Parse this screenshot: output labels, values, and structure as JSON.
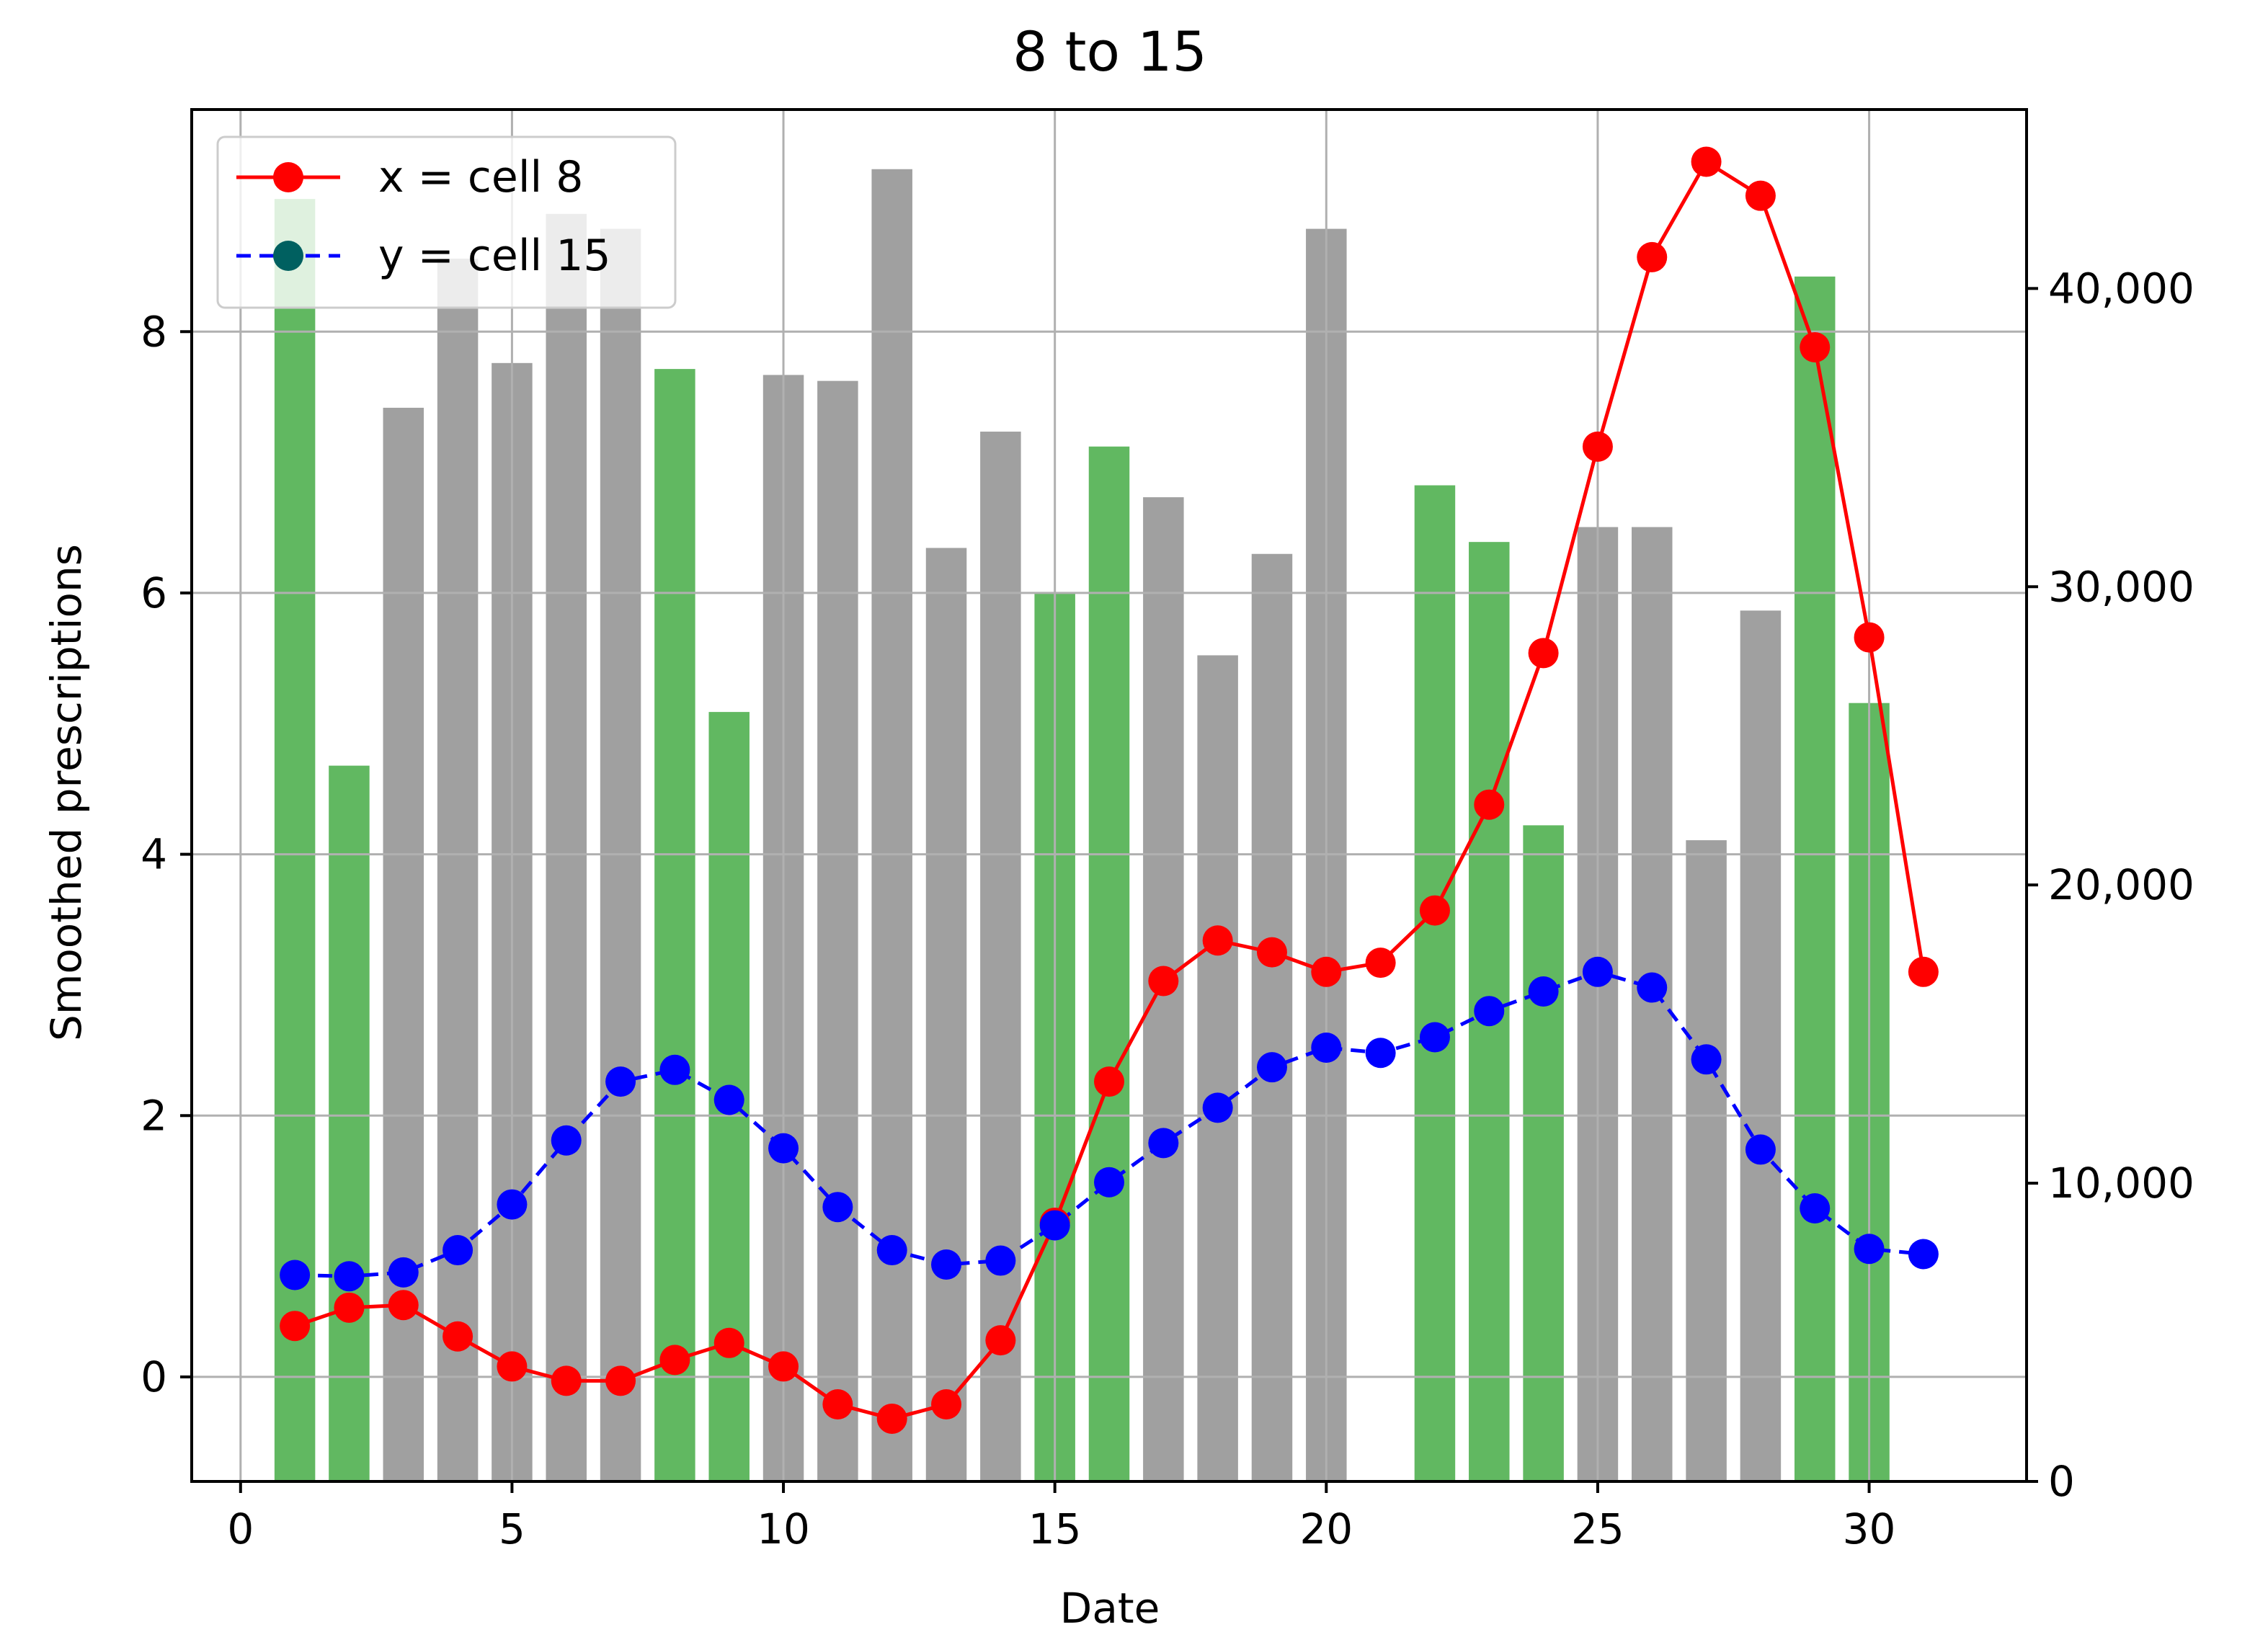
{
  "chart_data": {
    "type": "line",
    "title": "8 to 15",
    "xlabel": "Date",
    "ylabel": "Smoothed prescriptions",
    "y2label": "",
    "xlim": [
      -0.9,
      32.9
    ],
    "ylim": [
      -0.8,
      9.7
    ],
    "y2lim": [
      0,
      46000
    ],
    "xticks": [
      0,
      5,
      10,
      15,
      20,
      25,
      30
    ],
    "yticks": [
      0,
      2,
      4,
      6,
      8
    ],
    "y2ticks": [
      0,
      10000,
      20000,
      30000,
      40000
    ],
    "y2ticklabels": [
      "0",
      "10,000",
      "20,000",
      "30,000",
      "40,000"
    ],
    "grid": true,
    "legend_position": "top-left",
    "colors": {
      "x_line": "#ff0000",
      "y_line": "#0000ff",
      "bar_green": "#2ca02c",
      "bar_grey": "#808080",
      "marker_overlap": "#006060"
    },
    "bars": {
      "axis": "right",
      "opacity": 0.75,
      "x": [
        1,
        2,
        3,
        4,
        5,
        6,
        7,
        8,
        9,
        10,
        11,
        12,
        13,
        14,
        15,
        16,
        17,
        18,
        19,
        20,
        22,
        23,
        24,
        25,
        26,
        27,
        28,
        29,
        30
      ],
      "values": [
        43000,
        24000,
        36000,
        41000,
        37500,
        42500,
        42000,
        37300,
        25800,
        37100,
        36900,
        44000,
        31300,
        35200,
        29800,
        34700,
        33000,
        27700,
        31100,
        42000,
        33400,
        31500,
        22000,
        32000,
        32000,
        21500,
        29200,
        40400,
        26100
      ],
      "colors": [
        "green",
        "green",
        "grey",
        "grey",
        "grey",
        "grey",
        "grey",
        "green",
        "green",
        "grey",
        "grey",
        "grey",
        "grey",
        "grey",
        "green",
        "green",
        "grey",
        "grey",
        "grey",
        "grey",
        "green",
        "green",
        "green",
        "grey",
        "grey",
        "grey",
        "grey",
        "green",
        "green"
      ]
    },
    "series": [
      {
        "name": "x = cell 8",
        "color": "#ff0000",
        "linestyle": "solid",
        "marker": "o",
        "x": [
          1,
          2,
          3,
          4,
          5,
          6,
          7,
          8,
          9,
          10,
          11,
          12,
          13,
          14,
          15,
          16,
          17,
          18,
          19,
          20,
          21,
          22,
          23,
          24,
          25,
          26,
          27,
          28,
          29,
          30,
          31
        ],
        "y": [
          0.39,
          0.53,
          0.55,
          0.31,
          0.08,
          -0.03,
          -0.03,
          0.13,
          0.26,
          0.08,
          -0.21,
          -0.32,
          -0.21,
          0.28,
          1.18,
          2.26,
          3.03,
          3.34,
          3.25,
          3.1,
          3.17,
          3.57,
          4.38,
          5.54,
          7.12,
          8.57,
          9.3,
          9.04,
          7.88,
          5.66,
          3.1
        ]
      },
      {
        "name": "y = cell 15",
        "color": "#0000ff",
        "linestyle": "dashed",
        "marker": "o",
        "x": [
          1,
          2,
          3,
          4,
          5,
          6,
          7,
          8,
          9,
          10,
          11,
          12,
          13,
          14,
          15,
          16,
          17,
          18,
          19,
          20,
          21,
          22,
          23,
          24,
          25,
          26,
          27,
          28,
          29,
          30,
          31
        ],
        "y": [
          0.78,
          0.77,
          0.8,
          0.97,
          1.32,
          1.81,
          2.26,
          2.35,
          2.12,
          1.75,
          1.3,
          0.97,
          0.86,
          0.89,
          1.16,
          1.49,
          1.79,
          2.06,
          2.37,
          2.52,
          2.48,
          2.6,
          2.8,
          2.95,
          3.1,
          2.98,
          2.43,
          1.74,
          1.29,
          0.98,
          0.94
        ]
      }
    ]
  }
}
